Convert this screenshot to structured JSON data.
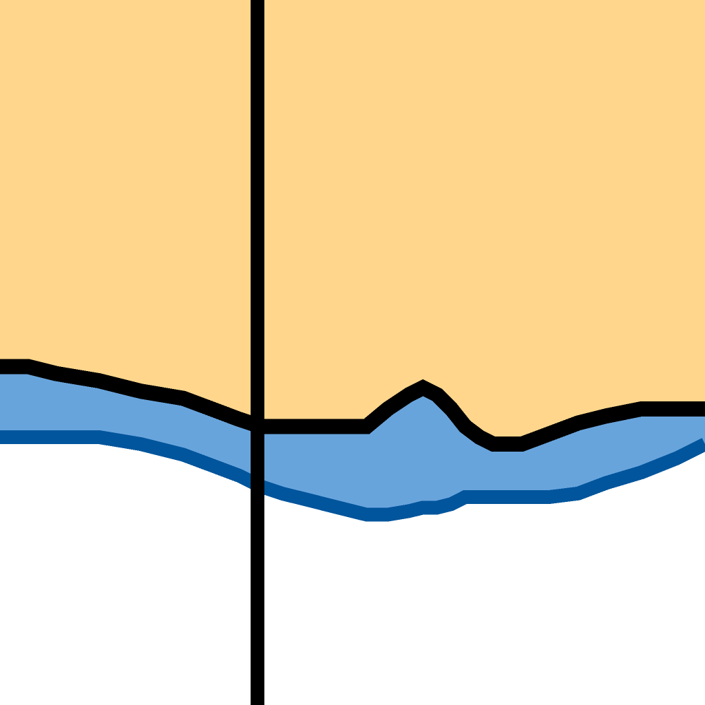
{
  "chart_data": {
    "type": "area",
    "title": "",
    "xlabel": "",
    "ylabel": "",
    "grid": false,
    "legend": "none",
    "xlim": [
      0,
      100
    ],
    "ylim": [
      0,
      100
    ],
    "background_color": "#ffffff",
    "x": [
      0,
      4,
      8,
      14,
      20,
      26,
      30,
      34,
      37,
      40,
      44,
      48,
      52,
      55,
      58,
      60,
      62,
      64,
      66,
      68,
      70,
      74,
      78,
      82,
      86,
      91,
      96,
      100
    ],
    "series": [
      {
        "fill_color": "#ffd68c",
        "boundary_color": "#000000",
        "values": [
          48,
          48,
          47,
          46,
          44.5,
          43.5,
          42,
          40.5,
          39.5,
          39.5,
          39.5,
          39.5,
          39.5,
          42,
          44,
          45,
          44,
          42,
          39.5,
          38,
          37,
          37,
          38.5,
          40,
          41,
          42,
          42,
          42
        ]
      },
      {
        "fill_color": "#68a4dc",
        "boundary_color": "#00559c",
        "values": [
          38,
          38,
          38,
          38,
          37,
          35.5,
          34,
          32.5,
          31,
          30,
          29,
          28,
          27,
          27,
          27.5,
          28,
          28,
          28.5,
          29.5,
          29.5,
          29.5,
          29.5,
          29.5,
          30,
          31.5,
          33,
          35,
          37
        ]
      }
    ],
    "reference_lines": [
      {
        "orientation": "vertical",
        "x": 36.5,
        "color": "#000000"
      }
    ]
  }
}
